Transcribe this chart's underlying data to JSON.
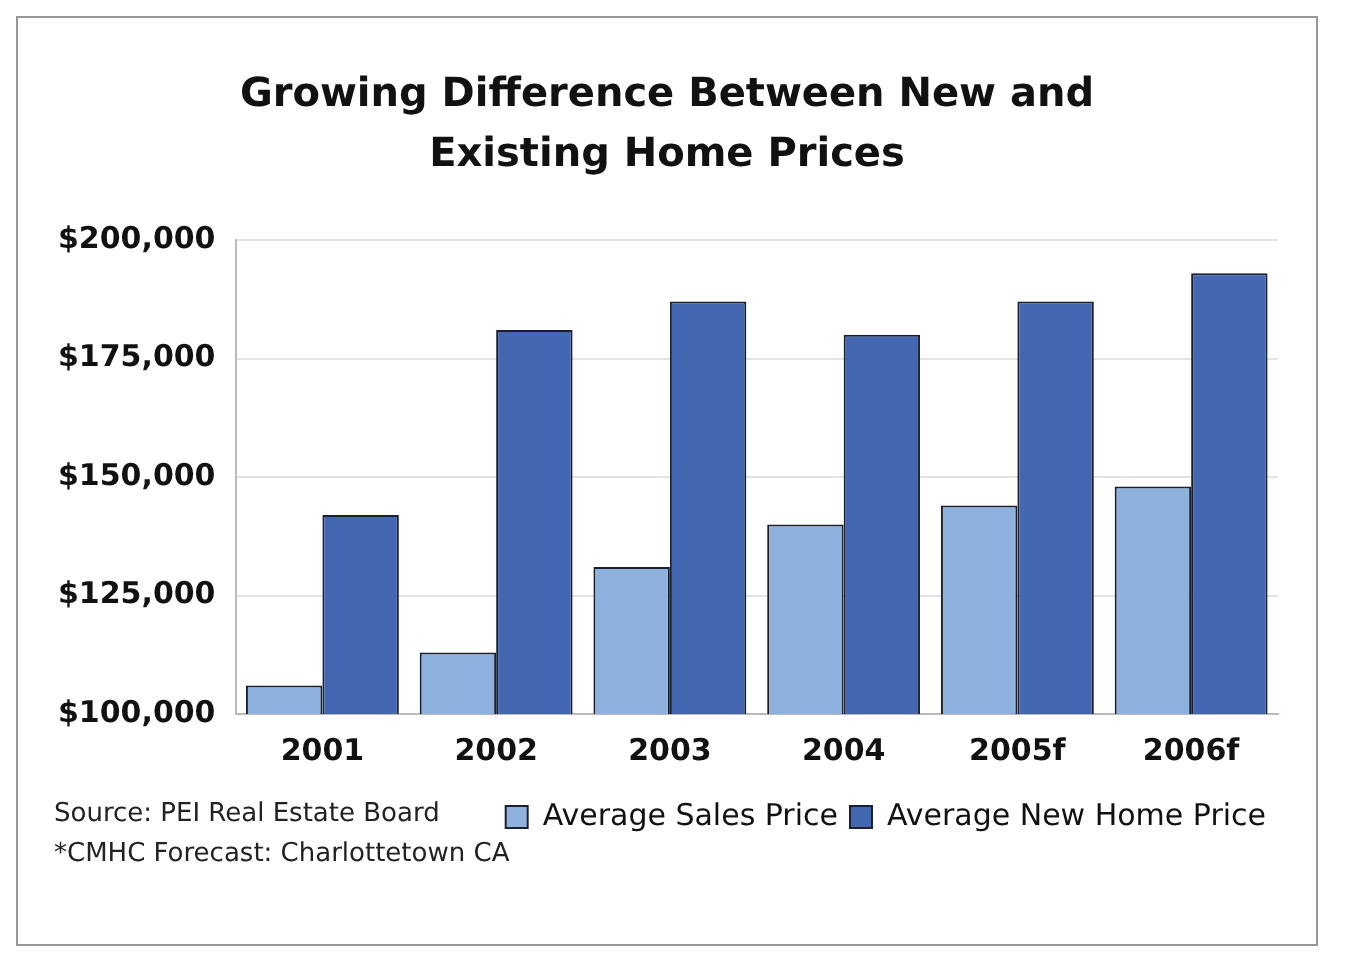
{
  "chart_data": {
    "type": "bar",
    "title": "Growing Difference Between New and Existing Home Prices",
    "categories": [
      "2001",
      "2002",
      "2003",
      "2004",
      "2005f",
      "2006f"
    ],
    "series": [
      {
        "name": "Average Sales Price",
        "color": "#8fb1dd",
        "values": [
          106000,
          113000,
          131000,
          140000,
          144000,
          148000
        ]
      },
      {
        "name": "Average New Home Price",
        "color": "#4467b2",
        "values": [
          142000,
          181000,
          187000,
          180000,
          187000,
          193000
        ]
      }
    ],
    "ylim": [
      100000,
      200000
    ],
    "yticks": [
      {
        "value": 100000,
        "label": "$100,000"
      },
      {
        "value": 125000,
        "label": "$125,000"
      },
      {
        "value": 150000,
        "label": "$150,000"
      },
      {
        "value": 175000,
        "label": "$175,000"
      },
      {
        "value": 200000,
        "label": "$200,000"
      }
    ],
    "grid": "y",
    "legend": "bottom right",
    "annotations": [
      "Source: PEI Real Estate Board",
      "*CMHC Forecast: Charlottetown CA"
    ]
  }
}
